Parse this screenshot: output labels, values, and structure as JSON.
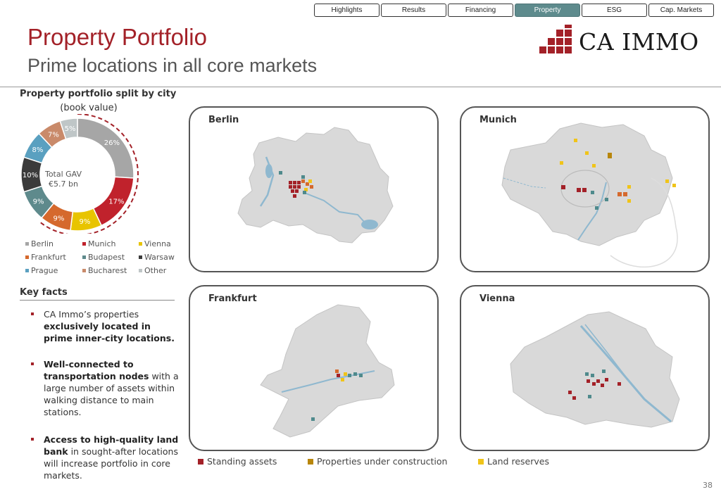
{
  "nav": {
    "tabs": [
      {
        "label": "Highlights",
        "active": false
      },
      {
        "label": "Results",
        "active": false
      },
      {
        "label": "Financing",
        "active": false
      },
      {
        "label": "Property",
        "active": true
      },
      {
        "label": "ESG",
        "active": false
      },
      {
        "label": "Cap. Markets",
        "active": false
      }
    ]
  },
  "header": {
    "title": "Property Portfolio",
    "subtitle": "Prime locations in all core markets",
    "logo_text": "CA IMMO",
    "brand_color": "#a32128"
  },
  "donut": {
    "title": "Property portfolio split by city",
    "subtitle": "(book value)",
    "center_line1": "Total GAV",
    "center_line2": "€5.7 bn"
  },
  "chart_data": {
    "type": "pie",
    "title": "Property portfolio split by city",
    "subtitle": "(book value)",
    "categories": [
      "Berlin",
      "Munich",
      "Vienna",
      "Frankfurt",
      "Budapest",
      "Warsaw",
      "Prague",
      "Bucharest",
      "Other"
    ],
    "values": [
      26,
      17,
      9,
      9,
      9,
      10,
      8,
      7,
      5
    ],
    "labels": [
      "26%",
      "17%",
      "9%",
      "9%",
      "9%",
      "10%",
      "8%",
      "7%",
      "5%"
    ],
    "colors": [
      "#a6a6a6",
      "#c0222c",
      "#e8c400",
      "#d5692d",
      "#5e8a8c",
      "#3b3b3b",
      "#5aa0c0",
      "#c98a6a",
      "#bfc6c7"
    ],
    "legend_position": "bottom",
    "highlight": [
      "Berlin",
      "Munich",
      "Vienna",
      "Frankfurt"
    ]
  },
  "key_facts": {
    "title": "Key facts",
    "items": [
      {
        "text": "CA Immo’s properties ",
        "bold": "exclusively located in prime inner-city locations.",
        "after": ""
      },
      {
        "text": "",
        "bold": "Well-connected to transportation nodes",
        "after": " with a large number of assets within walking distance to main stations."
      },
      {
        "text": "",
        "bold": "Access to high-quality land bank",
        "after": " in sought-after locations will increase portfolio in core markets."
      }
    ]
  },
  "maps": [
    {
      "name": "Berlin"
    },
    {
      "name": "Munich"
    },
    {
      "name": "Frankfurt"
    },
    {
      "name": "Vienna"
    }
  ],
  "map_legend": [
    {
      "label": "Standing assets",
      "color": "#a32128"
    },
    {
      "label": "Properties under construction",
      "color": "#b8860b"
    },
    {
      "label": "Land reserves",
      "color": "#f0c419"
    }
  ],
  "page_number": "38"
}
